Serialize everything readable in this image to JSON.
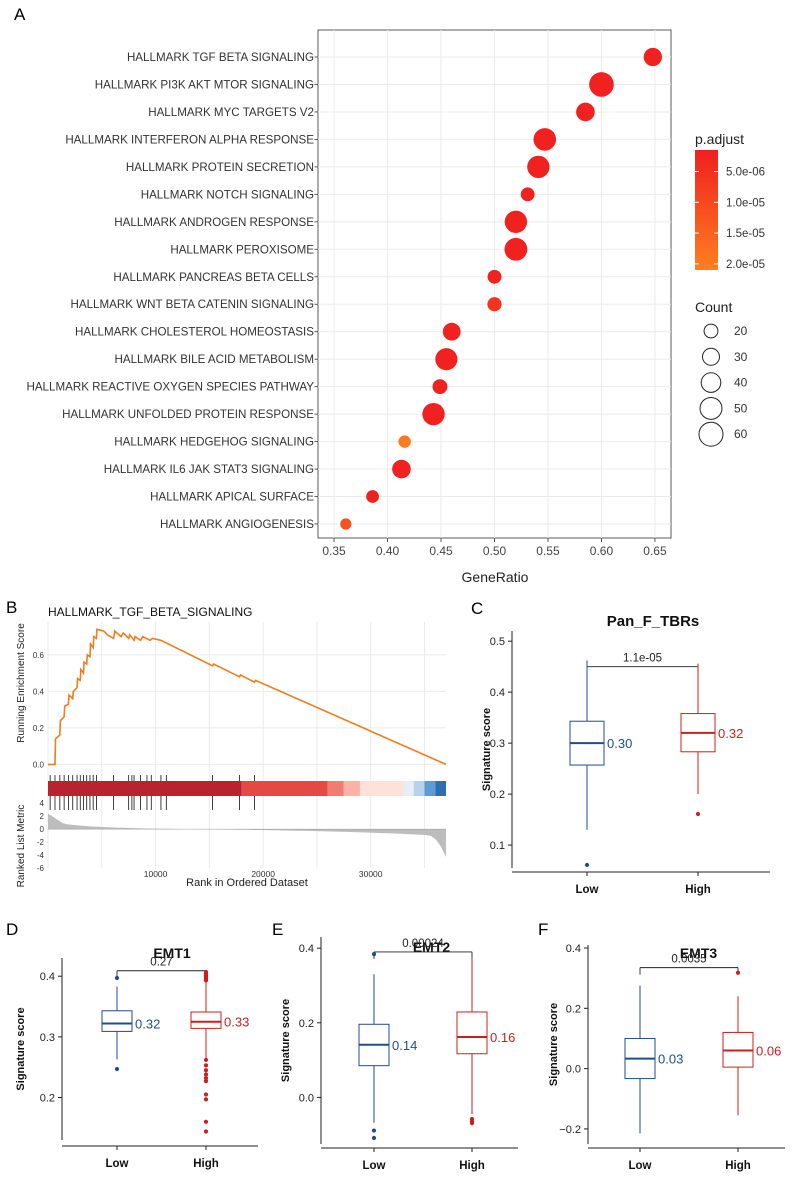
{
  "panel_labels": {
    "a": "A",
    "b": "B",
    "c": "C",
    "d": "D",
    "e": "E",
    "f": "F"
  },
  "colors": {
    "low": "#1f4e8c",
    "high": "#cc1f1f",
    "gsea_line": "#f07d1e",
    "grid": "#ebebeb",
    "grad_top": "#f01f1f",
    "grad_bottom": "#ff7f1f"
  },
  "chart_data": [
    {
      "id": "dotplot",
      "type": "scatter",
      "title": "",
      "xlabel": "GeneRatio",
      "ylabel": "",
      "xlim": [
        0.335,
        0.665
      ],
      "x_ticks": [
        0.35,
        0.4,
        0.45,
        0.5,
        0.55,
        0.6,
        0.65
      ],
      "x_tick_labels": [
        "0.35",
        "0.40",
        "0.45",
        "0.50",
        "0.55",
        "0.60",
        "0.65"
      ],
      "points": [
        {
          "term": "HALLMARK TGF BETA SIGNALING",
          "x": 0.648,
          "count": 35,
          "padj": 2e-06
        },
        {
          "term": "HALLMARK PI3K AKT MTOR SIGNALING",
          "x": 0.6,
          "count": 63,
          "padj": 2e-06
        },
        {
          "term": "HALLMARK MYC TARGETS V2",
          "x": 0.585,
          "count": 36,
          "padj": 2e-06
        },
        {
          "term": "HALLMARK INTERFERON ALPHA RESPONSE",
          "x": 0.547,
          "count": 53,
          "padj": 2e-06
        },
        {
          "term": "HALLMARK PROTEIN SECRETION",
          "x": 0.541,
          "count": 52,
          "padj": 2e-06
        },
        {
          "term": "HALLMARK NOTCH SIGNALING",
          "x": 0.531,
          "count": 20,
          "padj": 2e-06
        },
        {
          "term": "HALLMARK ANDROGEN RESPONSE",
          "x": 0.52,
          "count": 52,
          "padj": 2e-06
        },
        {
          "term": "HALLMARK PEROXISOME",
          "x": 0.52,
          "count": 54,
          "padj": 2e-06
        },
        {
          "term": "HALLMARK PANCREAS BETA CELLS",
          "x": 0.5,
          "count": 20,
          "padj": 2e-06
        },
        {
          "term": "HALLMARK WNT BETA CATENIN SIGNALING",
          "x": 0.5,
          "count": 21,
          "padj": 6e-06
        },
        {
          "term": "HALLMARK CHOLESTEROL HOMEOSTASIS",
          "x": 0.46,
          "count": 33,
          "padj": 2e-06
        },
        {
          "term": "HALLMARK BILE ACID METABOLISM",
          "x": 0.455,
          "count": 51,
          "padj": 2e-06
        },
        {
          "term": "HALLMARK REACTIVE OXYGEN SPECIES PATHWAY",
          "x": 0.449,
          "count": 23,
          "padj": 2e-06
        },
        {
          "term": "HALLMARK UNFOLDED PROTEIN RESPONSE",
          "x": 0.443,
          "count": 52,
          "padj": 2e-06
        },
        {
          "term": "HALLMARK HEDGEHOG SIGNALING",
          "x": 0.416,
          "count": 16,
          "padj": 2e-05
        },
        {
          "term": "HALLMARK IL6 JAK STAT3 SIGNALING",
          "x": 0.413,
          "count": 36,
          "padj": 2e-06
        },
        {
          "term": "HALLMARK APICAL SURFACE",
          "x": 0.386,
          "count": 17,
          "padj": 2e-06
        },
        {
          "term": "HALLMARK ANGIOGENESIS",
          "x": 0.361,
          "count": 13,
          "padj": 1.2e-05
        }
      ],
      "legend": {
        "color_title": "p.adjust",
        "color_labels": [
          "5.0e-06",
          "1.0e-05",
          "1.5e-05",
          "2.0e-05"
        ],
        "color_values": [
          5e-06,
          1e-05,
          1.5e-05,
          2e-05
        ],
        "color_range": [
          1.5e-06,
          2.1e-05
        ],
        "size_title": "Count",
        "size_labels": [
          "20",
          "30",
          "40",
          "50",
          "60"
        ],
        "size_values": [
          20,
          30,
          40,
          50,
          60
        ]
      }
    },
    {
      "id": "gsea",
      "type": "line",
      "title": "HALLMARK_TGF_BETA_SIGNALING",
      "xlabel": "Rank in Ordered Dataset",
      "ylabel_top": "Running Enrichment Score",
      "ylabel_bottom": "Ranked List Metric",
      "xlim": [
        0,
        37000
      ],
      "x_ticks": [
        10000,
        20000,
        30000
      ],
      "x_tick_labels": [
        "10000",
        "20000",
        "30000"
      ],
      "es_ylim": [
        -0.02,
        0.78
      ],
      "es_ticks": [
        0.0,
        0.2,
        0.4,
        0.6
      ],
      "es_tick_labels": [
        "0.0",
        "0.2",
        "0.4",
        "0.6"
      ],
      "es_curve": {
        "x": [
          0,
          650,
          700,
          1100,
          1150,
          1500,
          1550,
          1900,
          1950,
          2300,
          2350,
          2700,
          2750,
          3000,
          3050,
          3300,
          3350,
          3600,
          3650,
          3900,
          3950,
          4200,
          4250,
          4500,
          4550,
          5200,
          5500,
          6100,
          6200,
          6800,
          7000,
          7500,
          7600,
          8000,
          8100,
          8600,
          8800,
          9500,
          9700,
          10500,
          15300,
          15400,
          17800,
          17900,
          19200,
          19300,
          37000
        ],
        "y": [
          0.0,
          0.0,
          0.14,
          0.16,
          0.24,
          0.26,
          0.32,
          0.33,
          0.38,
          0.36,
          0.4,
          0.42,
          0.47,
          0.46,
          0.52,
          0.5,
          0.56,
          0.55,
          0.6,
          0.59,
          0.66,
          0.64,
          0.7,
          0.69,
          0.74,
          0.73,
          0.71,
          0.69,
          0.73,
          0.7,
          0.72,
          0.69,
          0.71,
          0.68,
          0.7,
          0.68,
          0.7,
          0.68,
          0.69,
          0.68,
          0.54,
          0.55,
          0.48,
          0.49,
          0.45,
          0.46,
          0.0
        ]
      },
      "hit_positions": [
        200,
        650,
        1100,
        1500,
        1900,
        2300,
        2700,
        3000,
        3300,
        3600,
        3900,
        4200,
        4500,
        6100,
        7500,
        7800,
        8000,
        8600,
        9200,
        9600,
        10500,
        11000,
        15300,
        17800,
        19200
      ],
      "rank_metric_ylim": [
        -6,
        4.5
      ],
      "rank_metric_ticks": [
        4,
        2,
        0,
        -2,
        -4,
        -6
      ],
      "rank_metric_tick_labels": [
        "4",
        "2",
        "0",
        "-2",
        "-4",
        "-6"
      ],
      "heat_segments": [
        {
          "from": 0,
          "to": 18000,
          "color": "#b8232f"
        },
        {
          "from": 18000,
          "to": 26000,
          "color": "#e34a44"
        },
        {
          "from": 26000,
          "to": 27500,
          "color": "#f27c72"
        },
        {
          "from": 27500,
          "to": 29000,
          "color": "#fbb3a8"
        },
        {
          "from": 29000,
          "to": 33000,
          "color": "#fde2da"
        },
        {
          "from": 33000,
          "to": 34000,
          "color": "#e8eef6"
        },
        {
          "from": 34000,
          "to": 35000,
          "color": "#b9d2ea"
        },
        {
          "from": 35000,
          "to": 36000,
          "color": "#5d9bd0"
        },
        {
          "from": 36000,
          "to": 37000,
          "color": "#2c6fb4"
        }
      ]
    },
    {
      "id": "box_c",
      "type": "box",
      "title": "Pan_F_TBRs",
      "xlabel": "",
      "ylabel": "Signature score",
      "categories": [
        "Low",
        "High"
      ],
      "ylim": [
        0.055,
        0.52
      ],
      "y_ticks": [
        0.1,
        0.2,
        0.3,
        0.4,
        0.5
      ],
      "y_tick_labels": [
        "0.1",
        "0.2",
        "0.3",
        "0.4",
        "0.5"
      ],
      "p_label": "1.1e-05",
      "bracket_y": 0.45,
      "boxes": [
        {
          "name": "Low",
          "whisker_low": 0.13,
          "q1": 0.257,
          "median": 0.3,
          "q3": 0.343,
          "whisker_high": 0.462,
          "outliers": [
            0.061
          ],
          "label": "0.30"
        },
        {
          "name": "High",
          "whisker_low": 0.2,
          "q1": 0.283,
          "median": 0.32,
          "q3": 0.358,
          "whisker_high": 0.456,
          "outliers": [
            0.161
          ],
          "label": "0.32"
        }
      ]
    },
    {
      "id": "box_d",
      "type": "box",
      "title": "EMT1",
      "xlabel": "",
      "ylabel": "Signature score",
      "categories": [
        "Low",
        "High"
      ],
      "ylim": [
        0.13,
        0.43
      ],
      "y_ticks": [
        0.2,
        0.3,
        0.4
      ],
      "y_tick_labels": [
        "0.2",
        "0.3",
        "0.4"
      ],
      "p_label": "0.27",
      "bracket_y": 0.409,
      "boxes": [
        {
          "name": "Low",
          "whisker_low": 0.263,
          "q1": 0.309,
          "median": 0.322,
          "q3": 0.343,
          "whisker_high": 0.383,
          "outliers": [
            0.397,
            0.247
          ],
          "label": "0.32"
        },
        {
          "name": "High",
          "whisker_low": 0.263,
          "q1": 0.314,
          "median": 0.325,
          "q3": 0.341,
          "whisker_high": 0.39,
          "outliers": [
            0.393,
            0.395,
            0.397,
            0.399,
            0.401,
            0.403,
            0.405,
            0.407,
            0.262,
            0.253,
            0.245,
            0.238,
            0.232,
            0.227,
            0.205,
            0.197,
            0.16,
            0.144
          ],
          "label": "0.33"
        }
      ]
    },
    {
      "id": "box_e",
      "type": "box",
      "title": "EMT2",
      "xlabel": "",
      "ylabel": "Signature score",
      "categories": [
        "Low",
        "High"
      ],
      "ylim": [
        -0.125,
        0.43
      ],
      "y_ticks": [
        0.0,
        0.2,
        0.4
      ],
      "y_tick_labels": [
        "0.0",
        "0.2",
        "0.4"
      ],
      "p_label": "0.00024",
      "bracket_y": 0.39,
      "boxes": [
        {
          "name": "Low",
          "whisker_low": -0.068,
          "q1": 0.085,
          "median": 0.141,
          "q3": 0.196,
          "whisker_high": 0.33,
          "outliers": [
            0.384,
            -0.089,
            -0.109
          ],
          "label": "0.14"
        },
        {
          "name": "High",
          "whisker_low": -0.045,
          "q1": 0.117,
          "median": 0.162,
          "q3": 0.229,
          "whisker_high": 0.375,
          "outliers": [
            -0.058,
            -0.064,
            -0.069
          ],
          "label": "0.16"
        }
      ]
    },
    {
      "id": "box_f",
      "type": "box",
      "title": "EMT3",
      "xlabel": "",
      "ylabel": "Signature score",
      "categories": [
        "Low",
        "High"
      ],
      "ylim": [
        -0.25,
        0.41
      ],
      "y_ticks": [
        -0.2,
        0.0,
        0.2,
        0.4
      ],
      "y_tick_labels": [
        "−0.2",
        "0.0",
        "0.2",
        "0.4"
      ],
      "p_label": "0.0035",
      "bracket_y": 0.335,
      "boxes": [
        {
          "name": "Low",
          "whisker_low": -0.215,
          "q1": -0.033,
          "median": 0.033,
          "q3": 0.1,
          "whisker_high": 0.275,
          "outliers": [],
          "label": "0.03"
        },
        {
          "name": "High",
          "whisker_low": -0.155,
          "q1": 0.005,
          "median": 0.06,
          "q3": 0.12,
          "whisker_high": 0.24,
          "outliers": [
            0.318
          ],
          "label": "0.06"
        }
      ]
    }
  ]
}
